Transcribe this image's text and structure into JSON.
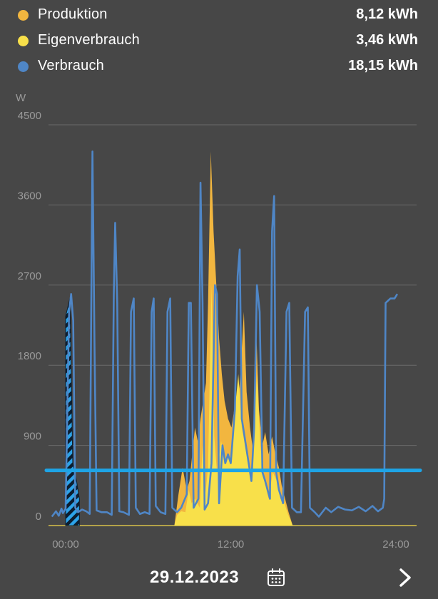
{
  "legend": [
    {
      "label": "Produktion",
      "value": "8,12 kWh",
      "color": "#f2b63f"
    },
    {
      "label": "Eigenverbrauch",
      "value": "3,46 kWh",
      "color": "#f8e04a"
    },
    {
      "label": "Verbrauch",
      "value": "18,15 kWh",
      "color": "#4f86c6"
    }
  ],
  "footer": {
    "date": "29.12.2023",
    "calendar_icon": "calendar-icon",
    "next_icon": "chevron-right-icon"
  },
  "chart_data": {
    "type": "area",
    "ylabel": "W",
    "ylim": [
      0,
      4500
    ],
    "yticks": [
      "4500",
      "3600",
      "2700",
      "1800",
      "900",
      "0"
    ],
    "xlim": [
      0,
      24
    ],
    "xticks": [
      {
        "x": 0,
        "label": "00:00"
      },
      {
        "x": 12,
        "label": "12:00"
      },
      {
        "x": 24,
        "label": "24:00"
      }
    ],
    "grid": true,
    "reference_line": {
      "value": 620,
      "color": "#1ea4e6"
    },
    "hatched_block": {
      "x_start": 0.0,
      "x_end": 1.0,
      "color": "#2da3e8"
    },
    "series": [
      {
        "name": "Verbrauch",
        "color": "#4f86c6",
        "points": [
          [
            -1.0,
            100
          ],
          [
            -0.7,
            160
          ],
          [
            -0.5,
            110
          ],
          [
            -0.3,
            190
          ],
          [
            -0.2,
            140
          ],
          [
            0.0,
            190
          ],
          [
            0.25,
            2400
          ],
          [
            0.4,
            2600
          ],
          [
            0.55,
            2300
          ],
          [
            0.7,
            200
          ],
          [
            0.9,
            150
          ],
          [
            1.2,
            180
          ],
          [
            1.5,
            160
          ],
          [
            1.75,
            130
          ],
          [
            1.85,
            2200
          ],
          [
            1.95,
            4200
          ],
          [
            2.1,
            2000
          ],
          [
            2.25,
            170
          ],
          [
            2.6,
            150
          ],
          [
            3.0,
            150
          ],
          [
            3.35,
            120
          ],
          [
            3.5,
            2600
          ],
          [
            3.6,
            3400
          ],
          [
            3.75,
            2500
          ],
          [
            3.9,
            160
          ],
          [
            4.2,
            150
          ],
          [
            4.6,
            120
          ],
          [
            4.75,
            2400
          ],
          [
            4.95,
            2550
          ],
          [
            5.1,
            200
          ],
          [
            5.4,
            130
          ],
          [
            5.75,
            150
          ],
          [
            6.1,
            130
          ],
          [
            6.25,
            2400
          ],
          [
            6.4,
            2550
          ],
          [
            6.55,
            220
          ],
          [
            6.9,
            150
          ],
          [
            7.25,
            130
          ],
          [
            7.4,
            2400
          ],
          [
            7.6,
            2550
          ],
          [
            7.75,
            200
          ],
          [
            8.1,
            150
          ],
          [
            8.4,
            200
          ],
          [
            8.8,
            350
          ],
          [
            8.95,
            2500
          ],
          [
            9.1,
            2500
          ],
          [
            9.3,
            200
          ],
          [
            9.65,
            300
          ],
          [
            9.8,
            3850
          ],
          [
            9.95,
            2500
          ],
          [
            10.1,
            180
          ],
          [
            10.35,
            250
          ],
          [
            10.6,
            700
          ],
          [
            10.85,
            2700
          ],
          [
            11.0,
            2600
          ],
          [
            11.15,
            250
          ],
          [
            11.4,
            900
          ],
          [
            11.6,
            700
          ],
          [
            11.8,
            800
          ],
          [
            12.0,
            700
          ],
          [
            12.3,
            1300
          ],
          [
            12.5,
            2800
          ],
          [
            12.65,
            3100
          ],
          [
            12.8,
            1200
          ],
          [
            13.2,
            800
          ],
          [
            13.5,
            500
          ],
          [
            13.7,
            1100
          ],
          [
            13.9,
            2700
          ],
          [
            14.1,
            2400
          ],
          [
            14.3,
            600
          ],
          [
            14.5,
            500
          ],
          [
            14.85,
            300
          ],
          [
            15.0,
            3300
          ],
          [
            15.15,
            3700
          ],
          [
            15.3,
            600
          ],
          [
            15.5,
            400
          ],
          [
            15.8,
            250
          ],
          [
            16.05,
            2400
          ],
          [
            16.25,
            2500
          ],
          [
            16.45,
            200
          ],
          [
            16.8,
            150
          ],
          [
            17.1,
            150
          ],
          [
            17.4,
            2400
          ],
          [
            17.6,
            2450
          ],
          [
            17.75,
            200
          ],
          [
            18.1,
            150
          ],
          [
            18.4,
            100
          ],
          [
            18.9,
            200
          ],
          [
            19.3,
            150
          ],
          [
            19.8,
            210
          ],
          [
            20.3,
            180
          ],
          [
            20.8,
            170
          ],
          [
            21.3,
            210
          ],
          [
            21.8,
            160
          ],
          [
            22.3,
            220
          ],
          [
            22.7,
            160
          ],
          [
            23.05,
            200
          ],
          [
            23.15,
            300
          ],
          [
            23.25,
            2500
          ],
          [
            23.6,
            2550
          ],
          [
            23.9,
            2550
          ],
          [
            24.1,
            2600
          ]
        ]
      },
      {
        "name": "Produktion",
        "color": "#f2b63f",
        "points": [
          [
            7.9,
            0
          ],
          [
            8.2,
            350
          ],
          [
            8.5,
            650
          ],
          [
            8.8,
            400
          ],
          [
            9.0,
            500
          ],
          [
            9.2,
            800
          ],
          [
            9.4,
            1100
          ],
          [
            9.6,
            950
          ],
          [
            9.8,
            1200
          ],
          [
            10.0,
            1400
          ],
          [
            10.2,
            1600
          ],
          [
            10.35,
            2500
          ],
          [
            10.55,
            4200
          ],
          [
            10.75,
            3300
          ],
          [
            10.95,
            2700
          ],
          [
            11.15,
            2100
          ],
          [
            11.35,
            1700
          ],
          [
            11.55,
            1400
          ],
          [
            11.8,
            1200
          ],
          [
            12.05,
            1100
          ],
          [
            12.25,
            1300
          ],
          [
            12.45,
            1200
          ],
          [
            12.7,
            1700
          ],
          [
            12.95,
            2400
          ],
          [
            13.15,
            1500
          ],
          [
            13.4,
            1100
          ],
          [
            13.65,
            800
          ],
          [
            13.85,
            2200
          ],
          [
            14.05,
            1300
          ],
          [
            14.3,
            900
          ],
          [
            14.5,
            1050
          ],
          [
            14.75,
            800
          ],
          [
            15.0,
            1000
          ],
          [
            15.25,
            800
          ],
          [
            15.5,
            650
          ],
          [
            15.7,
            450
          ],
          [
            15.95,
            300
          ],
          [
            16.2,
            150
          ],
          [
            16.5,
            0
          ]
        ]
      },
      {
        "name": "Eigenverbrauch",
        "color": "#f8e04a",
        "points": [
          [
            7.9,
            0
          ],
          [
            8.1,
            120
          ],
          [
            8.4,
            160
          ],
          [
            8.7,
            150
          ],
          [
            8.95,
            400
          ],
          [
            9.15,
            250
          ],
          [
            9.4,
            300
          ],
          [
            9.75,
            200
          ],
          [
            9.95,
            900
          ],
          [
            10.15,
            350
          ],
          [
            10.35,
            650
          ],
          [
            10.6,
            2700
          ],
          [
            10.8,
            1000
          ],
          [
            11.0,
            600
          ],
          [
            11.3,
            950
          ],
          [
            11.55,
            700
          ],
          [
            11.85,
            800
          ],
          [
            12.05,
            700
          ],
          [
            12.3,
            1300
          ],
          [
            12.55,
            1700
          ],
          [
            12.8,
            1100
          ],
          [
            13.15,
            800
          ],
          [
            13.45,
            500
          ],
          [
            13.7,
            1100
          ],
          [
            13.9,
            1700
          ],
          [
            14.15,
            900
          ],
          [
            14.45,
            500
          ],
          [
            14.75,
            300
          ],
          [
            15.05,
            600
          ],
          [
            15.35,
            500
          ],
          [
            15.6,
            300
          ],
          [
            15.9,
            250
          ],
          [
            16.15,
            130
          ],
          [
            16.5,
            0
          ]
        ]
      }
    ]
  }
}
